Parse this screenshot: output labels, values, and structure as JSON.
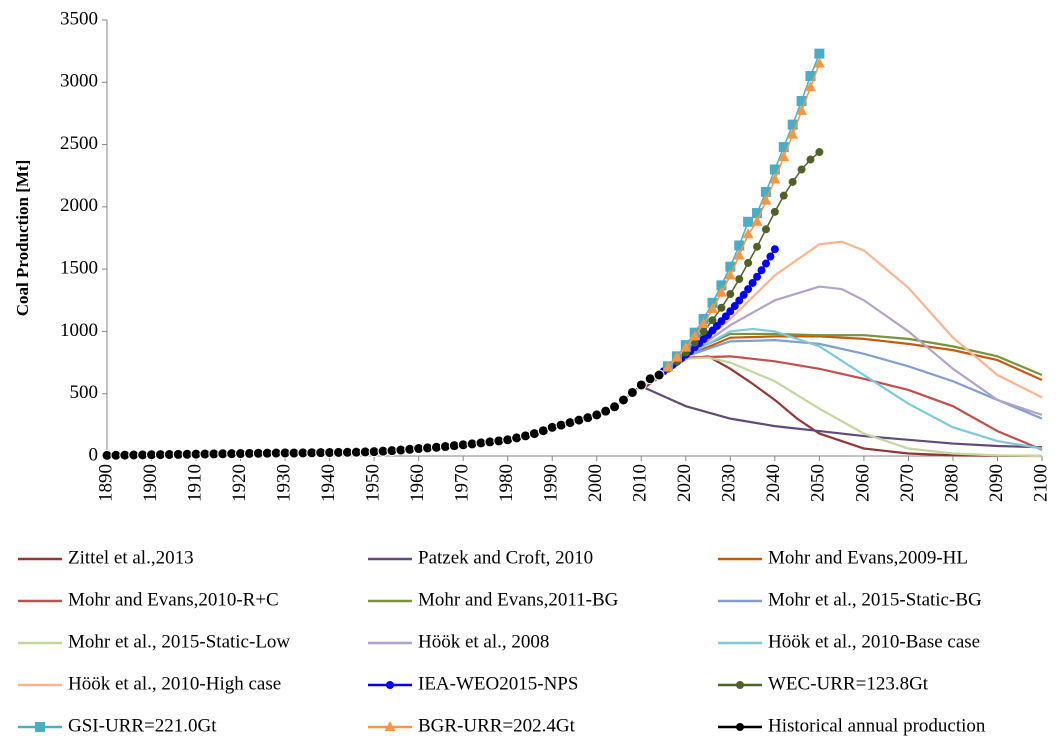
{
  "chart_data": {
    "type": "line",
    "y_label": "Coal Production [Mt]",
    "xlim": [
      1890,
      2100
    ],
    "xticks": [
      1890,
      1900,
      1910,
      1920,
      1930,
      1940,
      1950,
      1960,
      1970,
      1980,
      1990,
      2000,
      2010,
      2020,
      2030,
      2040,
      2050,
      2060,
      2070,
      2080,
      2090,
      2100
    ],
    "ylim": [
      0,
      3500
    ],
    "yticks": [
      0,
      500,
      1000,
      1500,
      2000,
      2500,
      3000,
      3500
    ],
    "grid": false,
    "series": [
      {
        "name": "Zittel et al.,2013",
        "color": "#943634",
        "x": [
          2010,
          2020,
          2025,
          2030,
          2035,
          2040,
          2045,
          2050,
          2060,
          2070,
          2080,
          2090,
          2100
        ],
        "values": [
          530,
          780,
          800,
          700,
          580,
          450,
          300,
          180,
          60,
          20,
          5,
          2,
          0
        ]
      },
      {
        "name": "Patzek and Croft, 2010",
        "color": "#604a7b",
        "x": [
          2010,
          2015,
          2020,
          2030,
          2040,
          2050,
          2060,
          2070,
          2080,
          2090,
          2100
        ],
        "values": [
          560,
          480,
          400,
          300,
          240,
          200,
          160,
          130,
          100,
          80,
          70
        ]
      },
      {
        "name": "Mohr and Evans,2009-HL",
        "color": "#c55a11",
        "x": [
          2010,
          2020,
          2030,
          2040,
          2050,
          2060,
          2070,
          2080,
          2090,
          2100
        ],
        "values": [
          560,
          800,
          950,
          960,
          960,
          940,
          900,
          850,
          770,
          610
        ]
      },
      {
        "name": "Mohr and Evans,2010-R+C",
        "color": "#c0504d",
        "x": [
          2010,
          2020,
          2030,
          2040,
          2050,
          2060,
          2070,
          2080,
          2090,
          2100
        ],
        "values": [
          560,
          790,
          800,
          760,
          700,
          620,
          530,
          400,
          200,
          50
        ]
      },
      {
        "name": "Mohr and Evans,2011-BG",
        "color": "#77933c",
        "x": [
          2010,
          2020,
          2030,
          2040,
          2050,
          2060,
          2070,
          2080,
          2090,
          2100
        ],
        "values": [
          560,
          820,
          980,
          980,
          970,
          970,
          940,
          880,
          800,
          650
        ]
      },
      {
        "name": "Mohr et al., 2015-Static-BG",
        "color": "#7f9fcf",
        "x": [
          2010,
          2020,
          2030,
          2040,
          2050,
          2060,
          2070,
          2080,
          2090,
          2100
        ],
        "values": [
          560,
          800,
          920,
          930,
          900,
          820,
          720,
          600,
          450,
          300
        ]
      },
      {
        "name": "Mohr et al., 2015-Static-Low",
        "color": "#c3d69b",
        "x": [
          2010,
          2020,
          2025,
          2030,
          2040,
          2050,
          2060,
          2070,
          2080,
          2090,
          2100
        ],
        "values": [
          560,
          780,
          790,
          750,
          600,
          380,
          180,
          60,
          20,
          5,
          0
        ]
      },
      {
        "name": "Höök et al., 2008",
        "color": "#b3a2c7",
        "x": [
          2010,
          2020,
          2030,
          2040,
          2050,
          2055,
          2060,
          2070,
          2080,
          2090,
          2100
        ],
        "values": [
          560,
          800,
          1050,
          1250,
          1360,
          1340,
          1250,
          1000,
          700,
          450,
          330
        ]
      },
      {
        "name": "Höök et al., 2010-Base case",
        "color": "#7dc8dc",
        "x": [
          2010,
          2020,
          2030,
          2035,
          2040,
          2050,
          2060,
          2070,
          2080,
          2090,
          2100
        ],
        "values": [
          560,
          800,
          1000,
          1020,
          1000,
          880,
          650,
          420,
          230,
          120,
          60
        ]
      },
      {
        "name": "Höök et al., 2010-High case",
        "color": "#fab58e",
        "x": [
          2010,
          2020,
          2030,
          2040,
          2050,
          2055,
          2060,
          2070,
          2080,
          2090,
          2100
        ],
        "values": [
          550,
          800,
          1100,
          1450,
          1700,
          1720,
          1650,
          1350,
          950,
          650,
          470
        ]
      },
      {
        "name": "IEA-WEO2015-NPS",
        "color": "#0000ff",
        "marker": "circle",
        "x": [
          2015,
          2016,
          2017,
          2018,
          2019,
          2020,
          2021,
          2022,
          2023,
          2024,
          2025,
          2026,
          2027,
          2028,
          2029,
          2030,
          2031,
          2032,
          2033,
          2034,
          2035,
          2036,
          2037,
          2038,
          2039,
          2040
        ],
        "values": [
          680,
          705,
          730,
          757,
          785,
          813,
          843,
          873,
          905,
          938,
          972,
          1007,
          1044,
          1082,
          1121,
          1162,
          1204,
          1248,
          1293,
          1340,
          1389,
          1439,
          1491,
          1545,
          1601,
          1660
        ]
      },
      {
        "name": "WEC-URR=123.8Gt",
        "color": "#4f6228",
        "marker": "circle",
        "x": [
          2016,
          2018,
          2020,
          2022,
          2024,
          2026,
          2028,
          2030,
          2032,
          2034,
          2036,
          2038,
          2040,
          2042,
          2044,
          2046,
          2048,
          2050
        ],
        "values": [
          700,
          760,
          830,
          910,
          1000,
          1090,
          1190,
          1300,
          1420,
          1550,
          1680,
          1820,
          1960,
          2090,
          2200,
          2300,
          2380,
          2440
        ]
      },
      {
        "name": "GSI-URR=221.0Gt",
        "color": "#4bacc6",
        "marker": "square",
        "x": [
          2016,
          2018,
          2020,
          2022,
          2024,
          2026,
          2028,
          2030,
          2032,
          2034,
          2036,
          2038,
          2040,
          2042,
          2044,
          2046,
          2048,
          2050
        ],
        "values": [
          720,
          800,
          890,
          990,
          1100,
          1230,
          1370,
          1520,
          1690,
          1880,
          1950,
          2120,
          2300,
          2480,
          2660,
          2850,
          3050,
          3230
        ]
      },
      {
        "name": "BGR-URR=202.4Gt",
        "color": "#f79646",
        "marker": "triangle",
        "x": [
          2016,
          2018,
          2020,
          2022,
          2024,
          2026,
          2028,
          2030,
          2032,
          2034,
          2036,
          2038,
          2040,
          2042,
          2044,
          2046,
          2048,
          2050
        ],
        "values": [
          710,
          790,
          870,
          960,
          1060,
          1180,
          1310,
          1450,
          1610,
          1780,
          1880,
          2050,
          2220,
          2400,
          2580,
          2770,
          2960,
          3150
        ]
      },
      {
        "name": "Historical annual production",
        "color": "#000000",
        "marker": "circle",
        "x": [
          1890,
          1892,
          1894,
          1896,
          1898,
          1900,
          1902,
          1904,
          1906,
          1908,
          1910,
          1912,
          1914,
          1916,
          1918,
          1920,
          1922,
          1924,
          1926,
          1928,
          1930,
          1932,
          1934,
          1936,
          1938,
          1940,
          1942,
          1944,
          1946,
          1948,
          1950,
          1952,
          1954,
          1956,
          1958,
          1960,
          1962,
          1964,
          1966,
          1968,
          1970,
          1972,
          1974,
          1976,
          1978,
          1980,
          1982,
          1984,
          1986,
          1988,
          1990,
          1992,
          1994,
          1996,
          1998,
          2000,
          2002,
          2004,
          2006,
          2008,
          2010,
          2012,
          2014
        ],
        "values": [
          5,
          6,
          7,
          8,
          9,
          10,
          11,
          12,
          13,
          14,
          15,
          16,
          17,
          18,
          19,
          20,
          21,
          22,
          23,
          24,
          25,
          24,
          25,
          26,
          27,
          28,
          29,
          30,
          31,
          33,
          35,
          39,
          43,
          48,
          54,
          60,
          65,
          70,
          76,
          83,
          90,
          97,
          105,
          113,
          121,
          130,
          145,
          162,
          180,
          203,
          230,
          248,
          268,
          288,
          308,
          330,
          360,
          395,
          450,
          510,
          570,
          620,
          650
        ]
      }
    ]
  }
}
